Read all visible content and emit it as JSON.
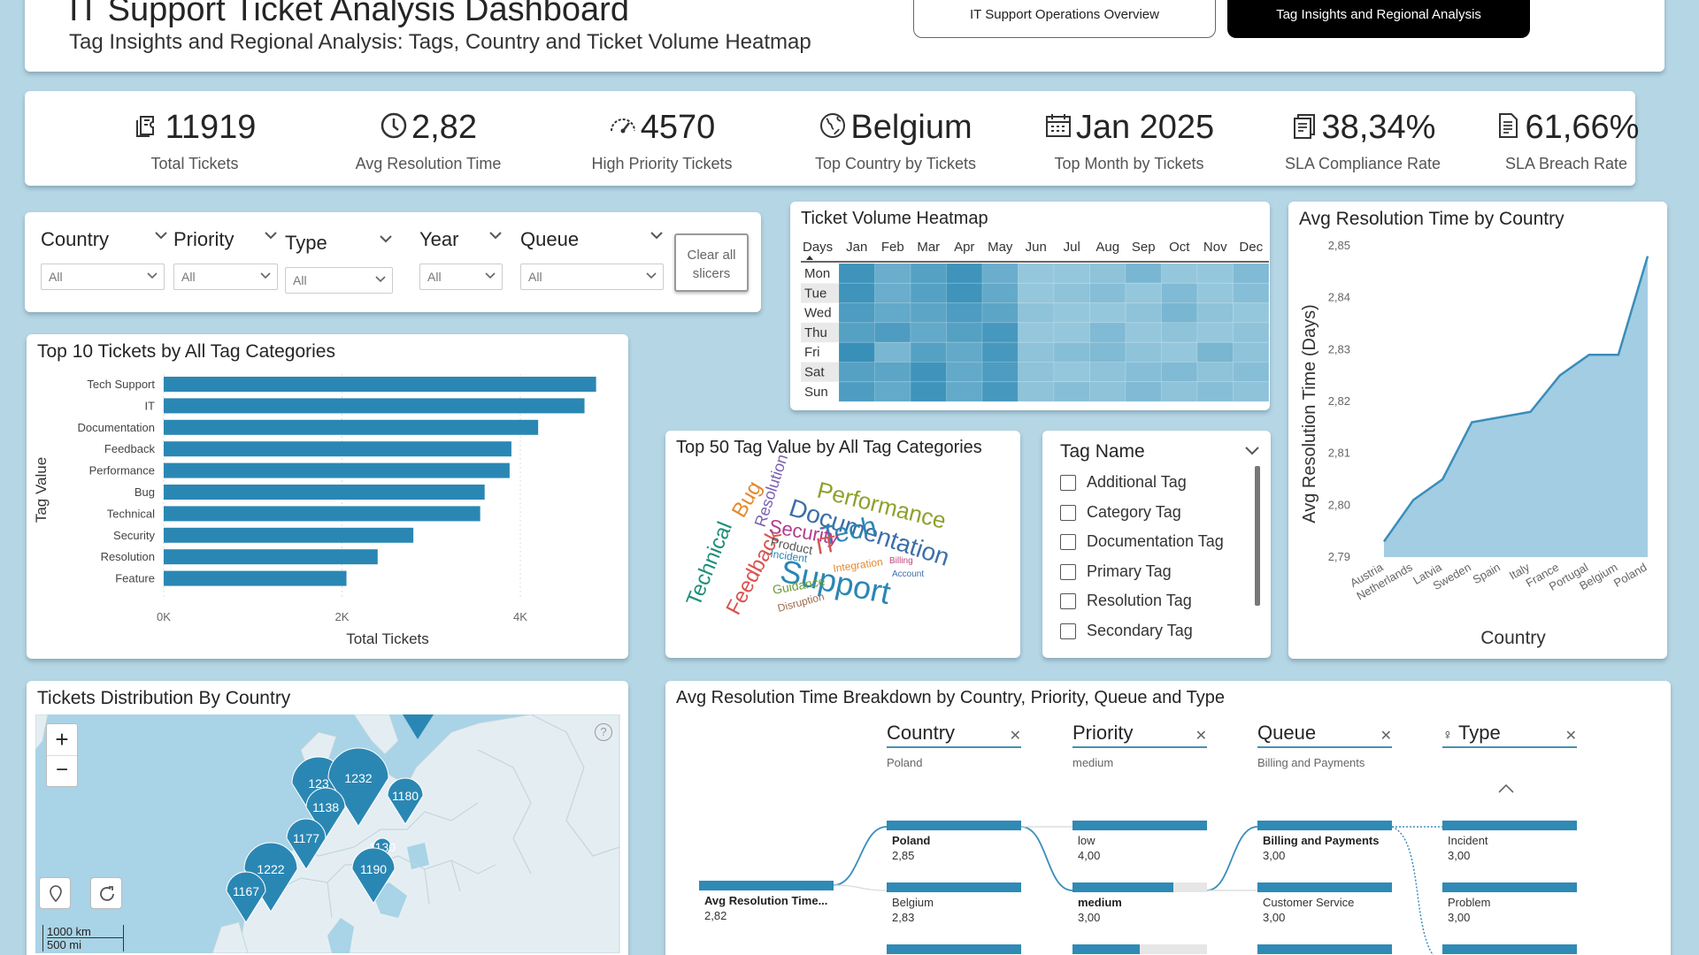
{
  "header": {
    "title": "IT Support Ticket Analysis Dashboard",
    "subtitle": "Tag Insights and Regional Analysis: Tags, Country and Ticket Volume Heatmap",
    "nav_overview": "IT Support Operations Overview",
    "nav_tags": "Tag Insights and Regional Analysis"
  },
  "kpis": [
    {
      "value": "11919",
      "label": "Total Tickets",
      "icon": "ticket-icon"
    },
    {
      "value": "2,82",
      "label": "Avg Resolution Time",
      "icon": "clock-icon"
    },
    {
      "value": "4570",
      "label": "High Priority Tickets",
      "icon": "speedometer-icon"
    },
    {
      "value": "Belgium",
      "label": "Top Country by Tickets",
      "icon": "globe-icon"
    },
    {
      "value": "Jan 2025",
      "label": "Top Month by Tickets",
      "icon": "calendar-icon"
    },
    {
      "value": "38,34%",
      "label": "SLA Compliance Rate",
      "icon": "document-check-icon"
    },
    {
      "value": "61,66%",
      "label": "SLA Breach Rate",
      "icon": "document-alert-icon"
    }
  ],
  "slicers": {
    "country": {
      "name": "Country",
      "value": "All"
    },
    "priority": {
      "name": "Priority",
      "value": "All"
    },
    "type": {
      "name": "Type",
      "value": "All"
    },
    "year": {
      "name": "Year",
      "value": "All"
    },
    "queue": {
      "name": "Queue",
      "value": "All"
    },
    "clear_label": "Clear all slicers"
  },
  "heatmap": {
    "title": "Ticket Volume Heatmap",
    "corner_label": "Days",
    "months": [
      "Jan",
      "Feb",
      "Mar",
      "Apr",
      "May",
      "Jun",
      "Jul",
      "Aug",
      "Sep",
      "Oct",
      "Nov",
      "Dec"
    ],
    "days": [
      "Mon",
      "Tue",
      "Wed",
      "Thu",
      "Fri",
      "Sat",
      "Sun"
    ],
    "intensity": [
      [
        0.85,
        0.55,
        0.7,
        0.85,
        0.55,
        0.25,
        0.25,
        0.3,
        0.45,
        0.25,
        0.25,
        0.4
      ],
      [
        0.85,
        0.55,
        0.7,
        0.85,
        0.6,
        0.25,
        0.3,
        0.35,
        0.25,
        0.4,
        0.25,
        0.35
      ],
      [
        0.75,
        0.6,
        0.65,
        0.75,
        0.65,
        0.3,
        0.25,
        0.25,
        0.3,
        0.45,
        0.3,
        0.25
      ],
      [
        0.7,
        0.75,
        0.6,
        0.7,
        0.8,
        0.25,
        0.25,
        0.4,
        0.25,
        0.3,
        0.25,
        0.3
      ],
      [
        0.9,
        0.45,
        0.7,
        0.6,
        0.8,
        0.3,
        0.35,
        0.4,
        0.3,
        0.25,
        0.45,
        0.3
      ],
      [
        0.7,
        0.65,
        0.85,
        0.6,
        0.75,
        0.3,
        0.25,
        0.3,
        0.35,
        0.4,
        0.3,
        0.35
      ],
      [
        0.75,
        0.6,
        0.85,
        0.6,
        0.8,
        0.3,
        0.35,
        0.3,
        0.4,
        0.3,
        0.35,
        0.3
      ]
    ],
    "colors": {
      "low": "#b9dcea",
      "high": "#2a87b3"
    }
  },
  "chart_data": [
    {
      "type": "bar",
      "title": "Top 10 Tickets by All Tag Categories",
      "categories": [
        "Tech Support",
        "IT",
        "Documentation",
        "Feedback",
        "Performance",
        "Bug",
        "Technical",
        "Security",
        "Resolution",
        "Feature"
      ],
      "values": [
        4850,
        4720,
        4200,
        3900,
        3880,
        3600,
        3550,
        2800,
        2400,
        2050
      ],
      "xlabel": "Total Tickets",
      "ylabel": "Tag Value",
      "xticks": [
        "0K",
        "2K",
        "4K"
      ],
      "xlim": [
        0,
        5000
      ],
      "color": "#2a87b3"
    },
    {
      "type": "area",
      "title": "Avg Resolution Time by Country",
      "categories": [
        "Austria",
        "Netherlands",
        "Latvia",
        "Sweden",
        "Spain",
        "Italy",
        "France",
        "Portugal",
        "Belgium",
        "Poland"
      ],
      "values": [
        2.793,
        2.801,
        2.805,
        2.816,
        2.817,
        2.818,
        2.825,
        2.829,
        2.829,
        2.848
      ],
      "xlabel": "Country",
      "ylabel": "Avg Resolution Time (Days)",
      "yticks": [
        "2,79",
        "2,80",
        "2,81",
        "2,82",
        "2,83",
        "2,84",
        "2,85"
      ],
      "ylim": [
        2.79,
        2.85
      ],
      "color": "#3a8dbb",
      "fill": "#a3cde2"
    }
  ],
  "wordcloud": {
    "title": "Top 50 Tag Value by All Tag Categories",
    "words": [
      {
        "text": "Support",
        "color": "#2a87b3"
      },
      {
        "text": "Documentation",
        "color": "#3c6ea8"
      },
      {
        "text": "Performance",
        "color": "#8da12c"
      },
      {
        "text": "Tech",
        "color": "#2a87b3"
      },
      {
        "text": "Technical",
        "color": "#1f8f7c"
      },
      {
        "text": "Feedback",
        "color": "#d9534f"
      },
      {
        "text": "Security",
        "color": "#b13c8c"
      },
      {
        "text": "Bug",
        "color": "#e58a2d"
      },
      {
        "text": "IT",
        "color": "#d9534f"
      },
      {
        "text": "Resolution",
        "color": "#7c5fb0"
      },
      {
        "text": "Integration",
        "color": "#e58a2d"
      },
      {
        "text": "Product",
        "color": "#555555"
      },
      {
        "text": "Guidance",
        "color": "#6a9b38"
      },
      {
        "text": "Disruption",
        "color": "#9e6b4f"
      },
      {
        "text": "Incident",
        "color": "#2a87b3"
      },
      {
        "text": "Billing",
        "color": "#c0497a"
      },
      {
        "text": "Account",
        "color": "#3c6ea8"
      }
    ]
  },
  "taglist": {
    "title": "Tag Name",
    "items": [
      "Additional Tag",
      "Category Tag",
      "Documentation Tag",
      "Primary Tag",
      "Resolution Tag",
      "Secondary Tag"
    ]
  },
  "map": {
    "title": "Tickets Distribution By Country",
    "zoom_in": "+",
    "zoom_out": "−",
    "scale_km": "1000 km",
    "scale_mi": "500 mi",
    "bubbles": [
      "123",
      "1232",
      "1138",
      "1180",
      "1177",
      "1130",
      "1222",
      "1190",
      "1167"
    ],
    "color": "#2a87b3"
  },
  "decomposition": {
    "title": "Avg Resolution Time Breakdown by Country, Priority, Queue and Type",
    "columns": [
      {
        "header": "Country",
        "selected": "Poland"
      },
      {
        "header": "Priority",
        "selected": "medium"
      },
      {
        "header": "Queue",
        "selected": "Billing and Payments"
      },
      {
        "header": "Type",
        "selected": ""
      }
    ],
    "root": {
      "label": "Avg Resolution Time...",
      "value": "2,82"
    },
    "country_nodes": [
      {
        "label": "Poland",
        "value": "2,85"
      },
      {
        "label": "Belgium",
        "value": "2,83"
      }
    ],
    "priority_nodes": [
      {
        "label": "low",
        "value": "4,00"
      },
      {
        "label": "medium",
        "value": "3,00"
      }
    ],
    "queue_nodes": [
      {
        "label": "Billing and Payments",
        "value": "3,00"
      },
      {
        "label": "Customer Service",
        "value": "3,00"
      }
    ],
    "type_nodes": [
      {
        "label": "Incident",
        "value": "3,00"
      },
      {
        "label": "Problem",
        "value": "3,00"
      }
    ]
  }
}
